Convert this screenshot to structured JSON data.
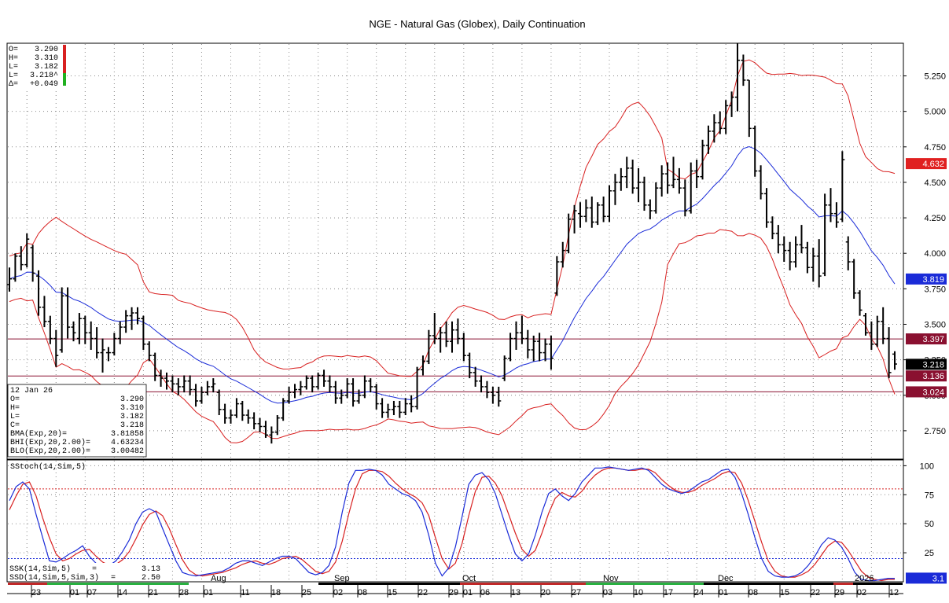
{
  "chart_data": [
    {
      "type": "ohlc",
      "title": "NGE - Natural Gas (Globex), Daily Continuation",
      "ylim": [
        2.55,
        5.48
      ],
      "yticks": [
        2.75,
        3.0,
        3.25,
        3.5,
        3.75,
        4.0,
        4.25,
        4.5,
        4.75,
        5.0,
        5.25
      ],
      "ytick_labels": [
        "2.750",
        "3.000",
        "3.250",
        "3.500",
        "3.750",
        "4.000",
        "4.250",
        "4.500",
        "4.750",
        "5.000",
        "5.250"
      ],
      "quote": {
        "lines": [
          {
            "label": "O=",
            "value": "3.290"
          },
          {
            "label": "H=",
            "value": "3.310"
          },
          {
            "label": "L=",
            "value": "3.182"
          },
          {
            "label": "L=",
            "value": "3.218^"
          },
          {
            "label": "Δ=",
            "value": "+0.049"
          }
        ]
      },
      "info_box": {
        "date": "12 Jan 26",
        "rows": [
          {
            "label": "O=",
            "value": "3.290"
          },
          {
            "label": "H=",
            "value": "3.310"
          },
          {
            "label": "L=",
            "value": "3.182"
          },
          {
            "label": "C=",
            "value": "3.218"
          },
          {
            "label": "BMA(Exp,20)=",
            "value": "3.81858"
          },
          {
            "label": "BHI(Exp,20,2.00)=",
            "value": "4.63234"
          },
          {
            "label": "BLO(Exp,20,2.00)=",
            "value": "3.00482"
          }
        ]
      },
      "horizontal_lines": [
        3.397,
        3.136,
        3.024
      ],
      "price_tags": [
        {
          "text": "4.632",
          "value": 4.632,
          "color": "#e02020"
        },
        {
          "text": "3.819",
          "value": 3.819,
          "color": "#1a2bd8"
        },
        {
          "text": "3.397",
          "value": 3.397,
          "color": "#8a1030"
        },
        {
          "text": "3.218",
          "value": 3.218,
          "color": "#000000"
        },
        {
          "text": "3.136",
          "value": 3.136,
          "color": "#8a1030"
        },
        {
          "text": "3.024",
          "value": 3.024,
          "color": "#8a1030"
        }
      ],
      "series": [
        {
          "name": "BMA(Exp,20)",
          "color": "#1a2bd8"
        },
        {
          "name": "BHI(Exp,20,2.00)",
          "color": "#d82020"
        },
        {
          "name": "BLO(Exp,20,2.00)",
          "color": "#d82020"
        }
      ],
      "ohlc": [
        [
          3.78,
          3.9,
          3.73,
          3.82
        ],
        [
          3.82,
          4.0,
          3.8,
          3.98
        ],
        [
          3.98,
          4.05,
          3.88,
          3.92
        ],
        [
          3.92,
          4.14,
          3.9,
          4.1
        ],
        [
          4.04,
          4.06,
          3.8,
          3.86
        ],
        [
          3.84,
          3.88,
          3.56,
          3.62
        ],
        [
          3.62,
          3.7,
          3.48,
          3.52
        ],
        [
          3.52,
          3.56,
          3.36,
          3.4
        ],
        [
          3.4,
          3.46,
          3.2,
          3.28
        ],
        [
          3.32,
          3.76,
          3.3,
          3.7
        ],
        [
          3.7,
          3.76,
          3.4,
          3.48
        ],
        [
          3.48,
          3.52,
          3.38,
          3.44
        ],
        [
          3.4,
          3.58,
          3.36,
          3.54
        ],
        [
          3.54,
          3.56,
          3.36,
          3.44
        ],
        [
          3.44,
          3.52,
          3.32,
          3.4
        ],
        [
          3.4,
          3.48,
          3.26,
          3.3
        ],
        [
          3.3,
          3.4,
          3.16,
          3.32
        ],
        [
          3.3,
          3.34,
          3.24,
          3.3
        ],
        [
          3.3,
          3.44,
          3.28,
          3.4
        ],
        [
          3.4,
          3.52,
          3.36,
          3.48
        ],
        [
          3.48,
          3.6,
          3.44,
          3.56
        ],
        [
          3.56,
          3.62,
          3.46,
          3.58
        ],
        [
          3.58,
          3.62,
          3.5,
          3.54
        ],
        [
          3.54,
          3.56,
          3.32,
          3.36
        ],
        [
          3.36,
          3.38,
          3.24,
          3.28
        ],
        [
          3.28,
          3.3,
          3.1,
          3.14
        ],
        [
          3.14,
          3.18,
          3.06,
          3.12
        ],
        [
          3.12,
          3.16,
          3.04,
          3.1
        ],
        [
          3.1,
          3.14,
          3.02,
          3.08
        ],
        [
          3.08,
          3.12,
          3.0,
          3.06
        ],
        [
          3.06,
          3.14,
          3.02,
          3.1
        ],
        [
          3.1,
          3.14,
          3.0,
          3.04
        ],
        [
          3.04,
          3.08,
          2.92,
          2.96
        ],
        [
          2.96,
          3.06,
          2.94,
          3.02
        ],
        [
          3.02,
          3.1,
          3.0,
          3.06
        ],
        [
          3.06,
          3.12,
          3.02,
          3.08
        ],
        [
          3.02,
          3.04,
          2.86,
          2.9
        ],
        [
          2.9,
          2.94,
          2.8,
          2.84
        ],
        [
          2.84,
          2.9,
          2.8,
          2.86
        ],
        [
          2.86,
          2.98,
          2.84,
          2.94
        ],
        [
          2.94,
          2.96,
          2.82,
          2.86
        ],
        [
          2.86,
          2.9,
          2.8,
          2.84
        ],
        [
          2.84,
          2.88,
          2.76,
          2.8
        ],
        [
          2.8,
          2.84,
          2.74,
          2.78
        ],
        [
          2.78,
          2.82,
          2.7,
          2.72
        ],
        [
          2.72,
          2.78,
          2.66,
          2.74
        ],
        [
          2.74,
          2.86,
          2.72,
          2.84
        ],
        [
          2.84,
          2.98,
          2.82,
          2.96
        ],
        [
          2.96,
          3.06,
          2.94,
          3.02
        ],
        [
          3.02,
          3.08,
          2.98,
          3.04
        ],
        [
          3.04,
          3.1,
          3.0,
          3.06
        ],
        [
          3.06,
          3.14,
          3.04,
          3.12
        ],
        [
          3.12,
          3.14,
          3.02,
          3.06
        ],
        [
          3.06,
          3.16,
          3.04,
          3.14
        ],
        [
          3.14,
          3.18,
          3.06,
          3.1
        ],
        [
          3.1,
          3.14,
          3.02,
          3.06
        ],
        [
          3.06,
          3.1,
          2.94,
          2.98
        ],
        [
          2.98,
          3.04,
          2.94,
          3.0
        ],
        [
          3.0,
          3.12,
          2.98,
          3.08
        ],
        [
          3.08,
          3.12,
          2.92,
          2.96
        ],
        [
          2.96,
          3.04,
          2.94,
          3.0
        ],
        [
          3.0,
          3.14,
          2.98,
          3.1
        ],
        [
          3.1,
          3.12,
          3.02,
          3.06
        ],
        [
          3.06,
          3.08,
          2.9,
          2.94
        ],
        [
          2.94,
          2.98,
          2.84,
          2.88
        ],
        [
          2.88,
          2.94,
          2.84,
          2.9
        ],
        [
          2.9,
          2.96,
          2.86,
          2.92
        ],
        [
          2.92,
          2.96,
          2.84,
          2.88
        ],
        [
          2.88,
          2.98,
          2.86,
          2.94
        ],
        [
          2.94,
          3.0,
          2.88,
          2.92
        ],
        [
          2.92,
          3.2,
          2.9,
          3.18
        ],
        [
          3.18,
          3.28,
          3.14,
          3.24
        ],
        [
          3.24,
          3.46,
          3.22,
          3.42
        ],
        [
          3.42,
          3.58,
          3.36,
          3.4
        ],
        [
          3.4,
          3.48,
          3.3,
          3.44
        ],
        [
          3.44,
          3.52,
          3.34,
          3.38
        ],
        [
          3.38,
          3.52,
          3.3,
          3.46
        ],
        [
          3.46,
          3.54,
          3.36,
          3.4
        ],
        [
          3.4,
          3.44,
          3.24,
          3.28
        ],
        [
          3.28,
          3.3,
          3.12,
          3.16
        ],
        [
          3.16,
          3.2,
          3.06,
          3.1
        ],
        [
          3.1,
          3.14,
          3.02,
          3.06
        ],
        [
          3.06,
          3.1,
          2.98,
          3.02
        ],
        [
          3.02,
          3.06,
          2.94,
          3.0
        ],
        [
          3.02,
          3.06,
          2.92,
          2.96
        ],
        [
          3.12,
          3.28,
          3.1,
          3.26
        ],
        [
          3.26,
          3.44,
          3.24,
          3.4
        ],
        [
          3.4,
          3.52,
          3.32,
          3.44
        ],
        [
          3.44,
          3.56,
          3.36,
          3.4
        ],
        [
          3.4,
          3.46,
          3.26,
          3.32
        ],
        [
          3.32,
          3.42,
          3.24,
          3.38
        ],
        [
          3.38,
          3.44,
          3.24,
          3.3
        ],
        [
          3.3,
          3.4,
          3.24,
          3.36
        ],
        [
          3.36,
          3.42,
          3.18,
          3.26
        ],
        [
          3.72,
          3.98,
          3.7,
          3.94
        ],
        [
          3.94,
          4.08,
          3.9,
          4.02
        ],
        [
          4.02,
          4.28,
          4.0,
          4.24
        ],
        [
          4.24,
          4.34,
          4.14,
          4.3
        ],
        [
          4.28,
          4.36,
          4.18,
          4.26
        ],
        [
          4.26,
          4.38,
          4.22,
          4.32
        ],
        [
          4.32,
          4.4,
          4.18,
          4.22
        ],
        [
          4.22,
          4.36,
          4.2,
          4.34
        ],
        [
          4.34,
          4.4,
          4.22,
          4.26
        ],
        [
          4.26,
          4.48,
          4.22,
          4.44
        ],
        [
          4.44,
          4.56,
          4.34,
          4.5
        ],
        [
          4.5,
          4.6,
          4.44,
          4.54
        ],
        [
          4.54,
          4.68,
          4.46,
          4.6
        ],
        [
          4.6,
          4.66,
          4.42,
          4.46
        ],
        [
          4.46,
          4.6,
          4.36,
          4.5
        ],
        [
          4.5,
          4.54,
          4.3,
          4.34
        ],
        [
          4.34,
          4.38,
          4.24,
          4.3
        ],
        [
          4.3,
          4.5,
          4.28,
          4.46
        ],
        [
          4.46,
          4.62,
          4.4,
          4.56
        ],
        [
          4.56,
          4.64,
          4.42,
          4.48
        ],
        [
          4.48,
          4.68,
          4.46,
          4.52
        ],
        [
          4.52,
          4.6,
          4.42,
          4.46
        ],
        [
          4.46,
          4.52,
          4.26,
          4.3
        ],
        [
          4.3,
          4.64,
          4.28,
          4.58
        ],
        [
          4.58,
          4.66,
          4.46,
          4.54
        ],
        [
          4.54,
          4.8,
          4.52,
          4.76
        ],
        [
          4.76,
          4.9,
          4.7,
          4.86
        ],
        [
          4.86,
          4.98,
          4.78,
          4.92
        ],
        [
          4.92,
          5.0,
          4.84,
          4.88
        ],
        [
          4.88,
          5.08,
          4.84,
          5.04
        ],
        [
          5.04,
          5.14,
          4.96,
          5.1
        ],
        [
          5.1,
          5.48,
          5.0,
          5.36
        ],
        [
          5.36,
          5.4,
          5.18,
          5.22
        ],
        [
          5.22,
          5.22,
          4.82,
          4.88
        ],
        [
          4.88,
          4.9,
          4.54,
          4.58
        ],
        [
          4.58,
          4.62,
          4.38,
          4.42
        ],
        [
          4.42,
          4.46,
          4.18,
          4.22
        ],
        [
          4.22,
          4.26,
          4.1,
          4.14
        ],
        [
          4.14,
          4.2,
          4.0,
          4.06
        ],
        [
          4.06,
          4.12,
          3.94,
          4.02
        ],
        [
          4.02,
          4.08,
          3.88,
          3.94
        ],
        [
          3.94,
          4.12,
          3.9,
          4.06
        ],
        [
          4.06,
          4.2,
          4.0,
          4.04
        ],
        [
          4.04,
          4.08,
          3.86,
          3.9
        ],
        [
          3.9,
          4.04,
          3.8,
          3.98
        ],
        [
          3.98,
          4.1,
          3.76,
          3.84
        ],
        [
          3.86,
          4.42,
          3.84,
          4.34
        ],
        [
          4.34,
          4.46,
          4.22,
          4.28
        ],
        [
          4.28,
          4.36,
          4.18,
          4.22
        ],
        [
          4.24,
          4.72,
          4.22,
          4.66
        ],
        [
          4.08,
          4.12,
          3.88,
          3.94
        ],
        [
          3.94,
          3.96,
          3.68,
          3.72
        ],
        [
          3.72,
          3.74,
          3.56,
          3.6
        ],
        [
          3.56,
          3.58,
          3.42,
          3.44
        ],
        [
          3.44,
          3.52,
          3.32,
          3.36
        ],
        [
          3.36,
          3.56,
          3.34,
          3.52
        ],
        [
          3.52,
          3.62,
          3.36,
          3.4
        ],
        [
          3.4,
          3.48,
          3.12,
          3.16
        ],
        [
          3.29,
          3.31,
          3.18,
          3.22
        ]
      ]
    },
    {
      "type": "line",
      "title": "SStoch(14,Sim,5)",
      "ylim": [
        0,
        105
      ],
      "yticks": [
        25,
        50,
        75,
        100
      ],
      "ytick_labels": [
        "25",
        "50",
        "75",
        "100"
      ],
      "levels": [
        80,
        20
      ],
      "series": [
        {
          "name": "SSK(14,Sim,5)",
          "color": "#1a2bd8",
          "last": "3.13"
        },
        {
          "name": "SSD(14,Sim,5,Sim,3)",
          "color": "#d82020",
          "last": "2.50"
        }
      ],
      "last_tag": {
        "text": "3.1",
        "value": 3.13,
        "color": "#1a2bd8"
      },
      "ssk": [
        70,
        82,
        86,
        80,
        58,
        38,
        18,
        17,
        20,
        24,
        27,
        31,
        22,
        16,
        13,
        14,
        18,
        26,
        36,
        50,
        60,
        63,
        60,
        46,
        32,
        18,
        8,
        6,
        5,
        6,
        7,
        8,
        9,
        12,
        16,
        18,
        18,
        16,
        14,
        17,
        20,
        22,
        22,
        20,
        14,
        8,
        6,
        8,
        14,
        30,
        60,
        85,
        96,
        96,
        97,
        96,
        92,
        84,
        80,
        76,
        74,
        70,
        60,
        40,
        16,
        5,
        12,
        30,
        56,
        84,
        92,
        94,
        88,
        76,
        58,
        40,
        24,
        18,
        24,
        40,
        60,
        76,
        80,
        74,
        70,
        76,
        86,
        92,
        98,
        98,
        99,
        98,
        97,
        96,
        97,
        98,
        96,
        90,
        84,
        80,
        78,
        76,
        78,
        82,
        86,
        88,
        92,
        96,
        97,
        90,
        76,
        58,
        38,
        20,
        9,
        5,
        4,
        4,
        5,
        8,
        14,
        22,
        32,
        38,
        36,
        30,
        20,
        8,
        2,
        1,
        1,
        2,
        3,
        3
      ],
      "ssd": [
        62,
        74,
        84,
        86,
        74,
        55,
        38,
        24,
        18,
        20,
        24,
        27,
        28,
        22,
        17,
        14,
        15,
        19,
        26,
        37,
        49,
        58,
        61,
        57,
        46,
        32,
        19,
        10,
        6,
        5,
        6,
        7,
        8,
        10,
        12,
        15,
        17,
        18,
        16,
        15,
        17,
        20,
        21,
        22,
        19,
        14,
        9,
        7,
        9,
        17,
        35,
        59,
        80,
        93,
        96,
        96,
        95,
        91,
        85,
        80,
        76,
        73,
        68,
        57,
        38,
        20,
        11,
        16,
        33,
        57,
        78,
        90,
        91,
        85,
        74,
        58,
        42,
        28,
        22,
        27,
        42,
        59,
        72,
        77,
        74,
        73,
        78,
        86,
        92,
        96,
        98,
        98,
        97,
        96,
        96,
        97,
        97,
        94,
        88,
        83,
        79,
        77,
        77,
        79,
        83,
        86,
        89,
        93,
        95,
        94,
        85,
        70,
        52,
        34,
        18,
        9,
        5,
        4,
        4,
        6,
        9,
        15,
        23,
        31,
        35,
        34,
        27,
        18,
        9,
        4,
        2,
        1,
        2,
        2
      ]
    }
  ],
  "x_axis": {
    "month_labels": [
      "Aug",
      "Sep",
      "Oct",
      "Nov",
      "Dec",
      "2026"
    ],
    "day_labels": [
      "23",
      "01",
      "07",
      "14",
      "21",
      "28",
      "01",
      "11",
      "18",
      "25",
      "02",
      "08",
      "15",
      "22",
      "29",
      "01",
      "06",
      "13",
      "20",
      "27",
      "03",
      "10",
      "17",
      "24",
      "01",
      "08",
      "15",
      "22",
      "29",
      "02",
      "12"
    ]
  }
}
